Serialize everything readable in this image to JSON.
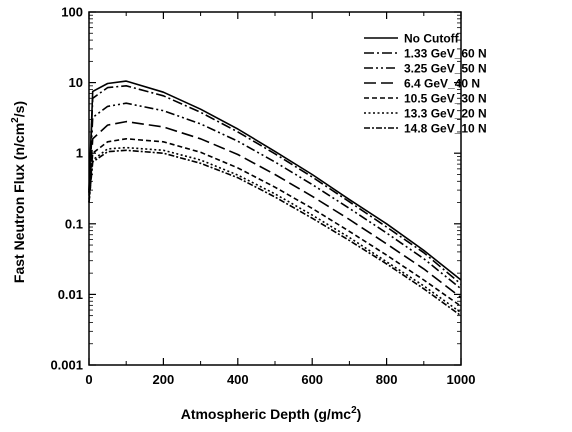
{
  "chart_data": {
    "type": "line",
    "title": "",
    "xlabel": "Atmospheric Depth (g/mc",
    "xlabel_sup": "2",
    "xlabel_end": ")",
    "ylabel": "Fast Neutron Flux (n/cm",
    "ylabel_sup": "2",
    "ylabel_end": "/s)",
    "xlim": [
      0,
      1000
    ],
    "ylim": [
      0.001,
      100
    ],
    "yscale": "log",
    "grid": false,
    "legend_position": "top-right",
    "x_ticks": [
      "0",
      "200",
      "400",
      "600",
      "800",
      "1000"
    ],
    "x_tick_values": [
      0,
      200,
      400,
      600,
      800,
      1000
    ],
    "y_ticks": [
      "0.001",
      "0.01",
      "0.1",
      "1",
      "10",
      "100"
    ],
    "y_tick_values": [
      0.001,
      0.01,
      0.1,
      1,
      10,
      100
    ],
    "x": [
      0,
      10,
      50,
      100,
      200,
      300,
      400,
      500,
      600,
      700,
      800,
      900,
      1000
    ],
    "series": [
      {
        "name": "No Cutoff",
        "dash": "solid",
        "values": [
          0.3,
          7.5,
          9.7,
          10.5,
          7.3,
          4.2,
          2.2,
          1.06,
          0.5,
          0.22,
          0.1,
          0.042,
          0.016
        ]
      },
      {
        "name": "1.33 GeV_60 N",
        "dash": "dashdot",
        "values": [
          0.28,
          6.0,
          8.5,
          9.0,
          6.5,
          3.8,
          2.0,
          0.98,
          0.46,
          0.205,
          0.09,
          0.039,
          0.014
        ]
      },
      {
        "name": "3.25 GeV_50 N",
        "dash": "dashdotdot",
        "values": [
          0.27,
          3.2,
          4.6,
          5.1,
          4.0,
          2.6,
          1.48,
          0.75,
          0.36,
          0.165,
          0.074,
          0.032,
          0.012
        ]
      },
      {
        "name": "6.4 GeV_40 N",
        "dash": "longdash",
        "values": [
          0.25,
          1.6,
          2.5,
          2.8,
          2.35,
          1.6,
          0.96,
          0.5,
          0.245,
          0.115,
          0.052,
          0.023,
          0.009
        ]
      },
      {
        "name": "10.5 GeV_30 N",
        "dash": "shortdash",
        "values": [
          0.22,
          1.0,
          1.45,
          1.6,
          1.45,
          1.03,
          0.62,
          0.33,
          0.165,
          0.078,
          0.036,
          0.016,
          0.0068
        ]
      },
      {
        "name": "13.3 GeV_20 N",
        "dash": "dotted",
        "values": [
          0.2,
          0.8,
          1.15,
          1.2,
          1.1,
          0.8,
          0.49,
          0.265,
          0.133,
          0.064,
          0.029,
          0.0132,
          0.0055
        ]
      },
      {
        "name": "14.8 GeV_10 N",
        "dash": "dashdot2",
        "values": [
          0.2,
          0.75,
          1.05,
          1.1,
          1.0,
          0.72,
          0.45,
          0.24,
          0.12,
          0.058,
          0.027,
          0.012,
          0.005
        ]
      }
    ]
  }
}
